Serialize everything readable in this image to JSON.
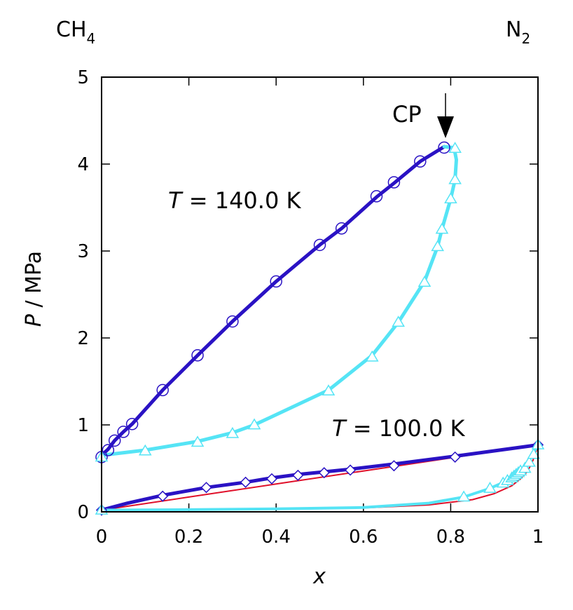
{
  "chart_data": {
    "type": "line",
    "title": "",
    "xlabel": "x",
    "ylabel_var": "P",
    "ylabel_unit": " / MPa",
    "xlim": [
      0,
      1
    ],
    "ylim": [
      0,
      5
    ],
    "xticks": [
      "0",
      "0.2",
      "0.4",
      "0.6",
      "0.8",
      "1"
    ],
    "xtick_values": [
      0,
      0.2,
      0.4,
      0.6,
      0.8,
      1.0
    ],
    "yticks": [
      "0",
      "1",
      "2",
      "3",
      "4",
      "5"
    ],
    "ytick_values": [
      0,
      1,
      2,
      3,
      4,
      5
    ],
    "grid": false,
    "corner_left": {
      "base": "CH",
      "sub": "4"
    },
    "corner_right": {
      "base": "N",
      "sub": "2"
    },
    "critical_point": {
      "label": "CP",
      "x": 0.785,
      "y": 4.2
    },
    "annotations": [
      {
        "var": "T",
        "text": " = 140.0 K"
      },
      {
        "var": "T",
        "text": " = 100.0 K"
      }
    ],
    "colors": {
      "bubble": "#2a12c4",
      "dew": "#55e4f5",
      "reference": "#e0102a",
      "axis": "#000000"
    },
    "series": [
      {
        "name": "140.0 K bubble line",
        "color": "#2a12c4",
        "width": 5,
        "x": [
          0,
          0.015,
          0.03,
          0.05,
          0.07,
          0.14,
          0.22,
          0.3,
          0.4,
          0.5,
          0.55,
          0.63,
          0.67,
          0.73,
          0.785
        ],
        "y": [
          0.65,
          0.72,
          0.82,
          0.92,
          1.01,
          1.4,
          1.8,
          2.19,
          2.65,
          3.07,
          3.26,
          3.62,
          3.78,
          4.03,
          4.2
        ]
      },
      {
        "name": "140.0 K dew line",
        "color": "#55e4f5",
        "width": 5,
        "x": [
          0,
          0.1,
          0.22,
          0.3,
          0.35,
          0.52,
          0.62,
          0.68,
          0.74,
          0.77,
          0.78,
          0.8,
          0.81,
          0.813,
          0.81,
          0.803,
          0.785
        ],
        "y": [
          0.65,
          0.71,
          0.81,
          0.91,
          1.0,
          1.4,
          1.8,
          2.18,
          2.65,
          3.05,
          3.25,
          3.6,
          3.82,
          4.05,
          4.13,
          4.19,
          4.2
        ]
      },
      {
        "name": "140.0 K bubble data",
        "marker": "circle",
        "color": "#2a12c4",
        "x": [
          0,
          0.015,
          0.03,
          0.05,
          0.07,
          0.14,
          0.22,
          0.3,
          0.4,
          0.5,
          0.55,
          0.63,
          0.67,
          0.73,
          0.785
        ],
        "y": [
          0.63,
          0.71,
          0.82,
          0.92,
          1.01,
          1.4,
          1.8,
          2.19,
          2.65,
          3.07,
          3.26,
          3.63,
          3.79,
          4.03,
          4.19
        ]
      },
      {
        "name": "140.0 K dew data",
        "marker": "triangle",
        "color": "#55e4f5",
        "x": [
          0,
          0.1,
          0.22,
          0.3,
          0.35,
          0.52,
          0.62,
          0.68,
          0.74,
          0.77,
          0.78,
          0.8,
          0.81,
          0.81
        ],
        "y": [
          0.63,
          0.7,
          0.8,
          0.9,
          1.0,
          1.39,
          1.78,
          2.18,
          2.64,
          3.05,
          3.25,
          3.6,
          3.82,
          4.18
        ]
      },
      {
        "name": "100.0 K bubble line (reference)",
        "color": "#e0102a",
        "width": 2,
        "x": [
          0,
          0.2,
          0.4,
          0.6,
          0.8,
          1.0
        ],
        "y": [
          0.02,
          0.17,
          0.32,
          0.47,
          0.62,
          0.77
        ]
      },
      {
        "name": "100.0 K bubble line",
        "color": "#2a12c4",
        "width": 5,
        "x": [
          0,
          0.06,
          0.14,
          0.24,
          0.33,
          0.39,
          0.45,
          0.51,
          0.57,
          0.67,
          0.81,
          1.0
        ],
        "y": [
          0.02,
          0.1,
          0.19,
          0.28,
          0.34,
          0.39,
          0.43,
          0.46,
          0.49,
          0.55,
          0.64,
          0.77
        ]
      },
      {
        "name": "100.0 K bubble data",
        "marker": "diamond",
        "color": "#2a12c4",
        "x": [
          0,
          0.14,
          0.24,
          0.33,
          0.39,
          0.45,
          0.51,
          0.57,
          0.67,
          0.81,
          1.0
        ],
        "y": [
          0.02,
          0.18,
          0.28,
          0.34,
          0.38,
          0.42,
          0.45,
          0.48,
          0.53,
          0.63,
          0.77
        ]
      },
      {
        "name": "100.0 K dew line (reference)",
        "color": "#e0102a",
        "width": 2,
        "x": [
          0,
          0.2,
          0.4,
          0.6,
          0.75,
          0.85,
          0.9,
          0.94,
          0.96,
          0.975,
          0.985,
          0.993,
          1.0
        ],
        "y": [
          0.02,
          0.025,
          0.03,
          0.045,
          0.08,
          0.14,
          0.21,
          0.3,
          0.38,
          0.46,
          0.55,
          0.65,
          0.77
        ]
      },
      {
        "name": "100.0 K dew line",
        "color": "#55e4f5",
        "width": 4,
        "x": [
          0,
          0.2,
          0.4,
          0.6,
          0.75,
          0.83,
          0.89,
          0.93,
          0.95,
          0.97,
          0.98,
          0.99,
          1.0
        ],
        "y": [
          0.02,
          0.025,
          0.035,
          0.05,
          0.1,
          0.17,
          0.27,
          0.36,
          0.43,
          0.52,
          0.6,
          0.68,
          0.77
        ]
      },
      {
        "name": "100.0 K dew data",
        "marker": "triangle",
        "color": "#55e4f5",
        "x": [
          0,
          0.83,
          0.89,
          0.92,
          0.93,
          0.94,
          0.945,
          0.95,
          0.955,
          0.96,
          0.97,
          0.98,
          0.99,
          1.0
        ],
        "y": [
          0.02,
          0.17,
          0.27,
          0.33,
          0.36,
          0.39,
          0.41,
          0.43,
          0.45,
          0.47,
          0.5,
          0.57,
          0.66,
          0.77
        ]
      }
    ]
  }
}
